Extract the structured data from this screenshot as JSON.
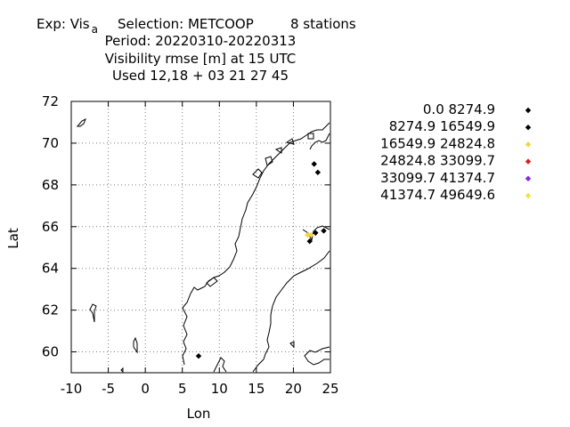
{
  "title": {
    "exp_prefix": "Exp: Vis",
    "exp_sub": "a",
    "selection": "Selection: METCOOP",
    "stations": "8 stations",
    "period": "Period: 20220310-20220313",
    "line3": "Visibility rmse [m] at  15 UTC",
    "line4": "Used  12,18 + 03 21 27 45"
  },
  "chart_data": {
    "type": "scatter",
    "xlabel": "Lon",
    "ylabel": "Lat",
    "xlim": [
      -10,
      25
    ],
    "ylim": [
      59,
      72
    ],
    "xticks": [
      -10,
      -5,
      0,
      5,
      10,
      15,
      20,
      25
    ],
    "yticks": [
      60,
      62,
      64,
      66,
      68,
      70,
      72
    ],
    "xtick_labels": [
      "-10",
      "-5",
      "0",
      "5",
      "10",
      "15",
      "20",
      "25"
    ],
    "ytick_labels": [
      "60",
      "62",
      "64",
      "66",
      "68",
      "70",
      "72"
    ],
    "grid": true,
    "legend_position": "right",
    "legend": [
      {
        "label": "0.0 8274.9",
        "color": "#000000"
      },
      {
        "label": "8274.9 16549.9",
        "color": "#000000"
      },
      {
        "label": "16549.9 24824.8",
        "color": "#f5d442"
      },
      {
        "label": "24824.8 33099.7",
        "color": "#d42020"
      },
      {
        "label": "33099.7 41374.7",
        "color": "#8a22e6"
      },
      {
        "label": "41374.7 49649.6",
        "color": "#f5e042"
      }
    ],
    "points": [
      {
        "lon": 22.8,
        "lat": 69.0,
        "bin": 1
      },
      {
        "lon": 23.3,
        "lat": 68.6,
        "bin": 1
      },
      {
        "lon": 24.1,
        "lat": 65.8,
        "bin": 0
      },
      {
        "lon": 23.0,
        "lat": 65.7,
        "bin": 1
      },
      {
        "lon": 22.2,
        "lat": 65.3,
        "bin": 1
      },
      {
        "lon": 21.9,
        "lat": 65.6,
        "bin": 2
      },
      {
        "lon": 22.4,
        "lat": 65.6,
        "bin": 2
      },
      {
        "lon": 7.2,
        "lat": 59.8,
        "bin": 1
      }
    ]
  }
}
